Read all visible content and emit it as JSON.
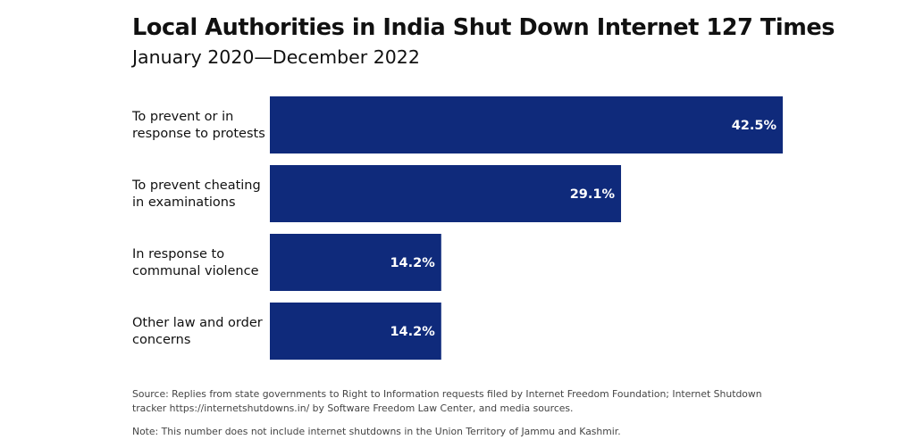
{
  "colors": {
    "bar": "#0f2a7b",
    "value_text": "#ffffff"
  },
  "chart_data": {
    "type": "bar",
    "orientation": "horizontal",
    "title": "Local Authorities in India Shut Down Internet 127 Times",
    "subtitle": "January 2020—December 2022",
    "categories": [
      [
        "To prevent or in",
        "response to protests"
      ],
      [
        "To prevent cheating",
        "in examinations"
      ],
      [
        "In response to",
        "communal violence"
      ],
      [
        "Other law and order",
        "concerns"
      ]
    ],
    "values": [
      42.5,
      29.1,
      14.2,
      14.2
    ],
    "value_labels": [
      "42.5%",
      "29.1%",
      "14.2%",
      "14.2%"
    ],
    "xlim": [
      0,
      42.5
    ],
    "grid": false,
    "legend": "none"
  },
  "source": "Source: Replies from state governments to Right to Information requests filed by Internet Freedom Foundation; Internet Shutdown tracker https://internetshutdowns.in/ by Software Freedom Law Center, and media sources.",
  "note": "Note: This number does not include internet shutdowns in the Union Territory of Jammu and Kashmir."
}
